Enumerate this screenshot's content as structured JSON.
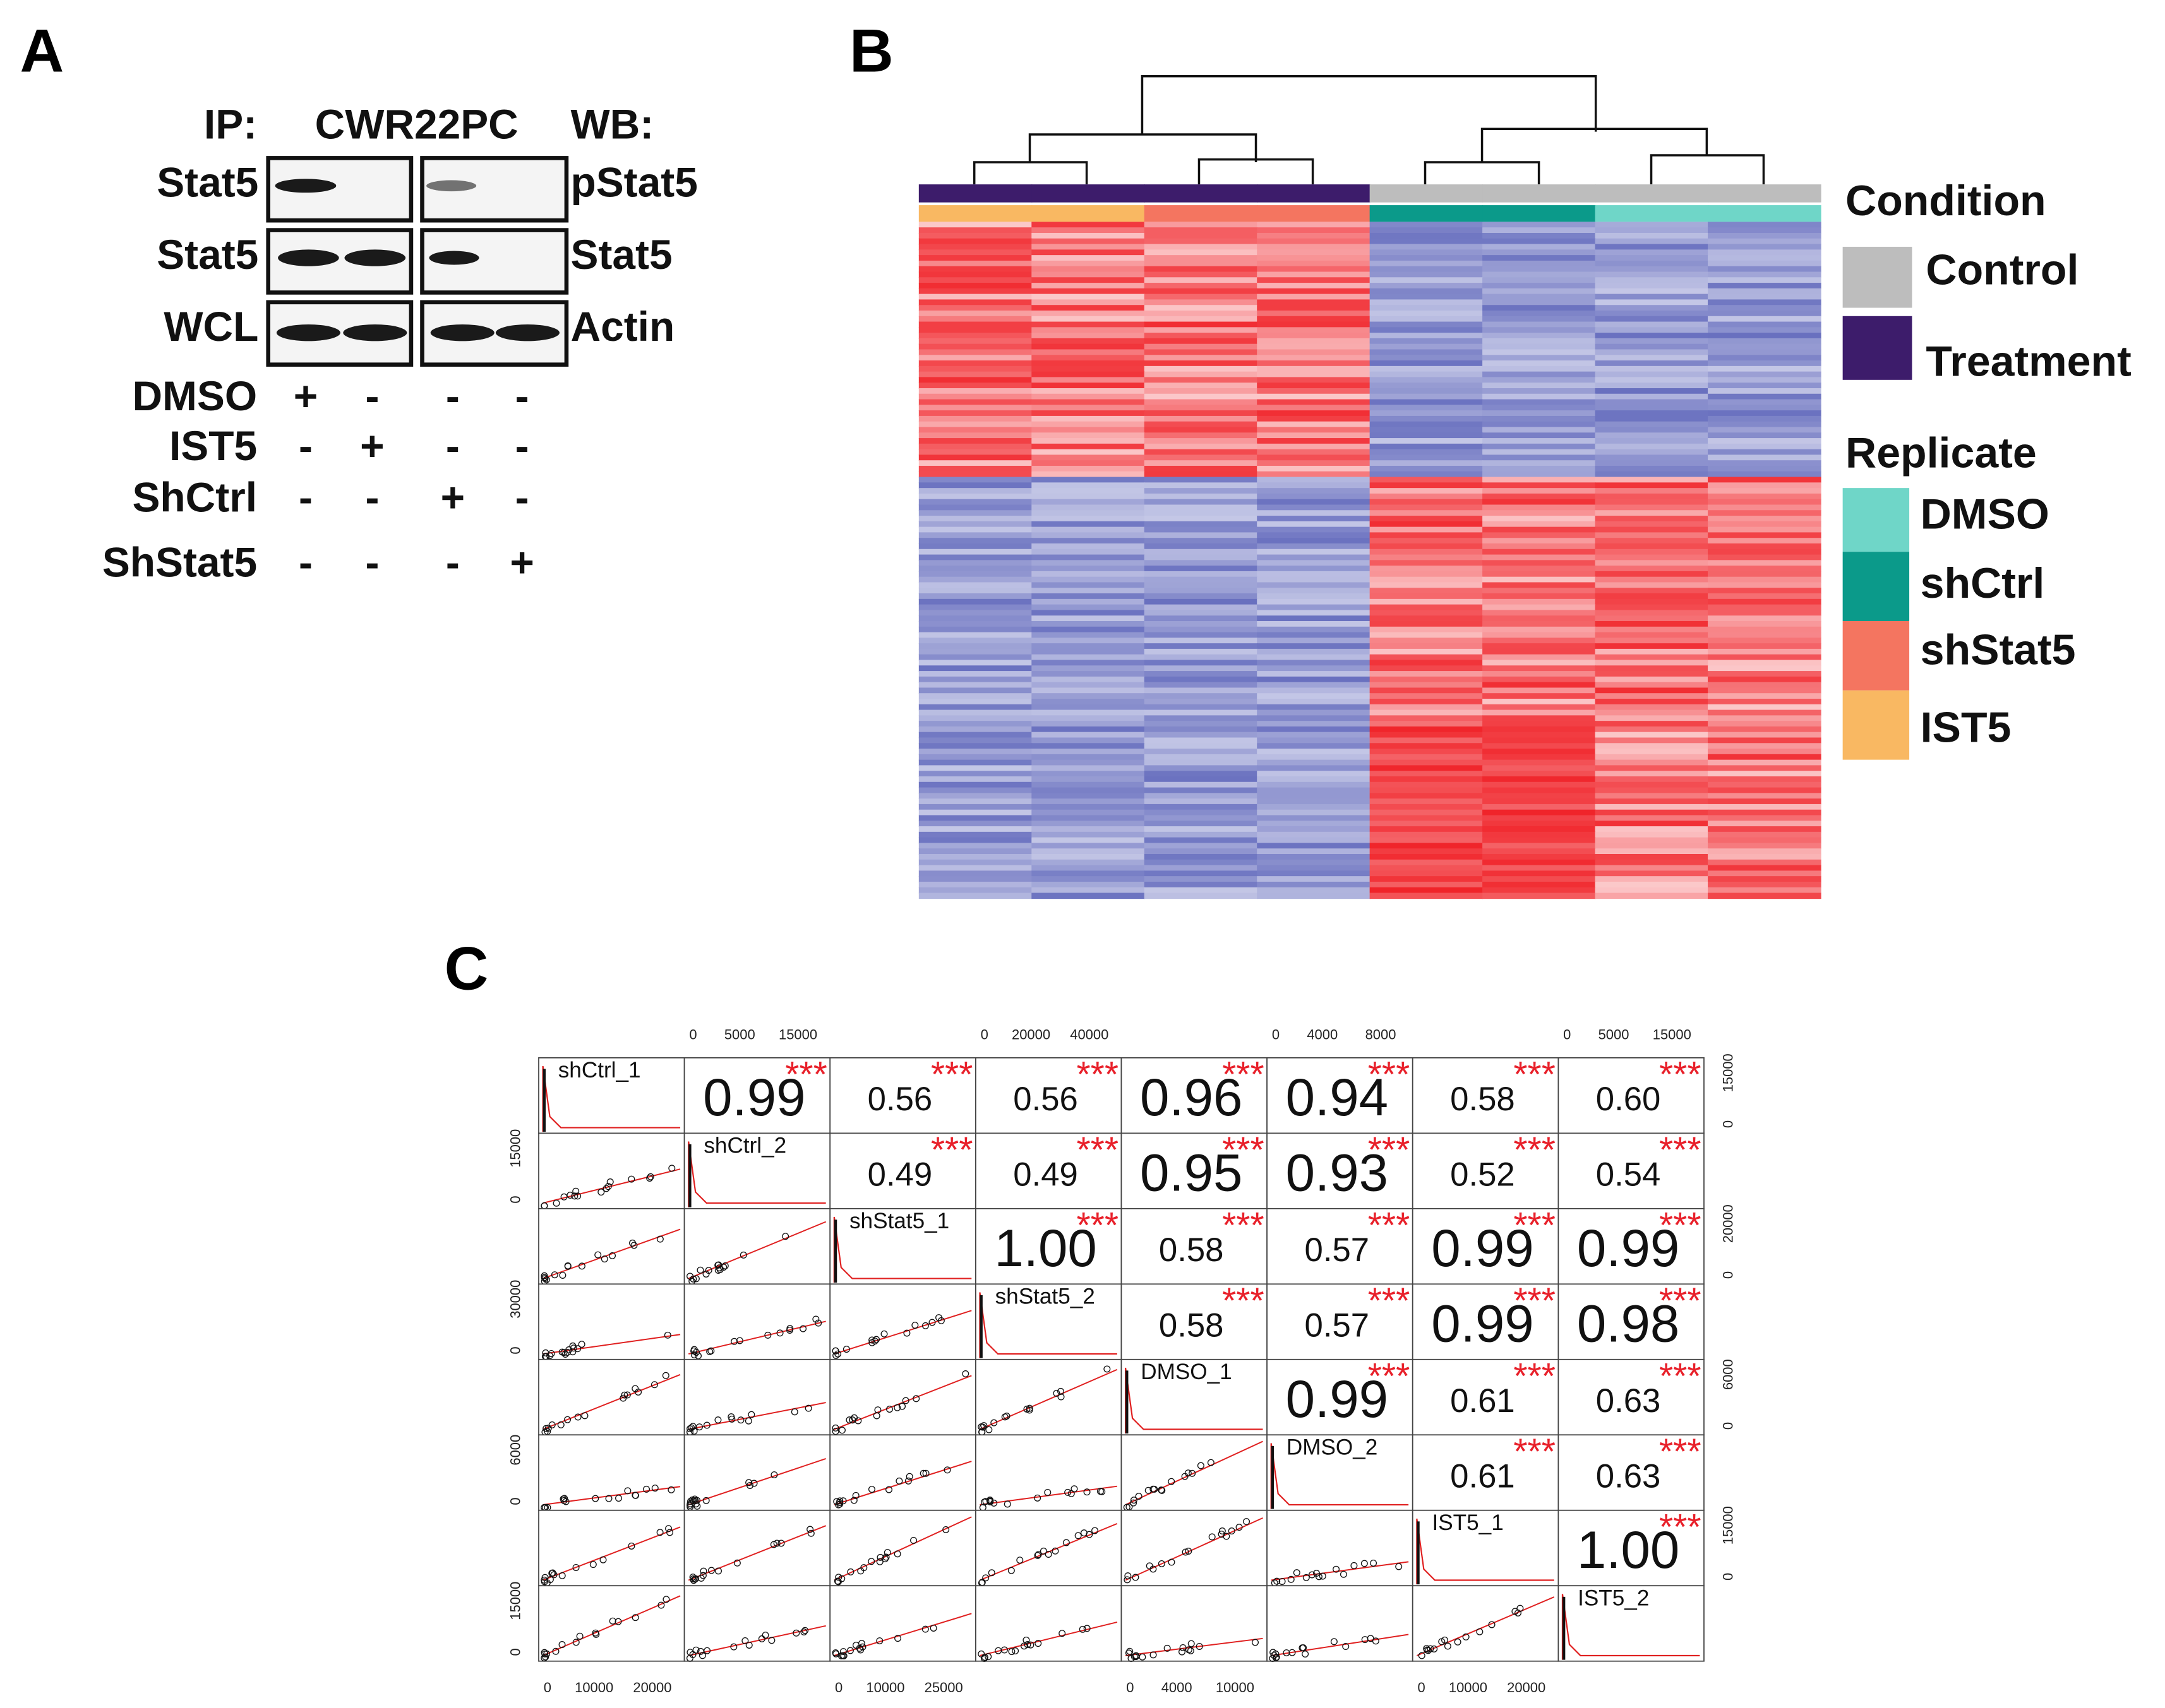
{
  "panel_a": {
    "label": "A",
    "ip": "IP:",
    "cell_line": "CWR22PC",
    "wb": "WB:",
    "ip_labels": [
      "Stat5",
      "Stat5",
      "WCL"
    ],
    "wb_labels": [
      "pStat5",
      "Stat5",
      "Actin"
    ],
    "treatments": [
      {
        "name": "DMSO",
        "marks": [
          "+",
          "-",
          "-",
          "-"
        ]
      },
      {
        "name": "IST5",
        "marks": [
          "-",
          "+",
          "-",
          "-"
        ]
      },
      {
        "name": "ShCtrl",
        "marks": [
          "-",
          "-",
          "+",
          "-"
        ]
      },
      {
        "name": "ShStat5",
        "marks": [
          "-",
          "-",
          "-",
          "+"
        ]
      }
    ]
  },
  "panel_b": {
    "label": "B",
    "legend": [
      {
        "title": "Condition",
        "items": [
          {
            "name": "Control",
            "color": "#bdbdbd"
          },
          {
            "name": "Treatment",
            "color": "#3d1c6b"
          }
        ]
      },
      {
        "title": "Replicate",
        "items": [
          {
            "name": "DMSO",
            "color": "#6fd6c8"
          },
          {
            "name": "shCtrl",
            "color": "#0b9a8a"
          },
          {
            "name": "shStat5",
            "color": "#f47560"
          },
          {
            "name": "IST5",
            "color": "#f9b862"
          }
        ]
      }
    ]
  },
  "panel_c": {
    "label": "C",
    "variables": [
      "shCtrl_1",
      "shCtrl_2",
      "shStat5_1",
      "shStat5_2",
      "DMSO_1",
      "DMSO_2",
      "IST5_1",
      "IST5_2"
    ],
    "correlations": [
      [
        "0.99",
        "0.56",
        "0.56",
        "0.96",
        "0.94",
        "0.58",
        "0.60"
      ],
      [
        "0.49",
        "0.49",
        "0.95",
        "0.93",
        "0.52",
        "0.54"
      ],
      [
        "1.00",
        "0.58",
        "0.57",
        "0.99",
        "0.99"
      ],
      [
        "0.58",
        "0.57",
        "0.99",
        "0.98"
      ],
      [
        "0.99",
        "0.61",
        "0.63"
      ],
      [
        "0.61",
        "0.63"
      ],
      [
        "1.00"
      ]
    ],
    "stars": "***",
    "top_ticks": [
      [
        "0",
        "5000",
        "15000"
      ],
      [
        "0",
        "20000",
        "40000"
      ],
      [
        "0",
        "4000",
        "8000"
      ],
      [
        "0",
        "5000",
        "15000"
      ]
    ],
    "bottom_ticks": [
      [
        "0",
        "10000",
        "20000"
      ],
      [
        "0",
        "10000",
        "25000"
      ],
      [
        "0",
        "4000",
        "10000"
      ],
      [
        "0",
        "10000",
        "20000"
      ]
    ],
    "left_ticks": [
      [
        "0",
        "15000"
      ],
      [
        "0",
        "30000"
      ],
      [
        "0",
        "6000"
      ],
      [
        "0",
        "15000"
      ]
    ],
    "right_ticks": [
      [
        "0",
        "15000"
      ],
      [
        "0",
        "20000"
      ],
      [
        "0",
        "6000"
      ],
      [
        "0",
        "15000"
      ]
    ]
  }
}
